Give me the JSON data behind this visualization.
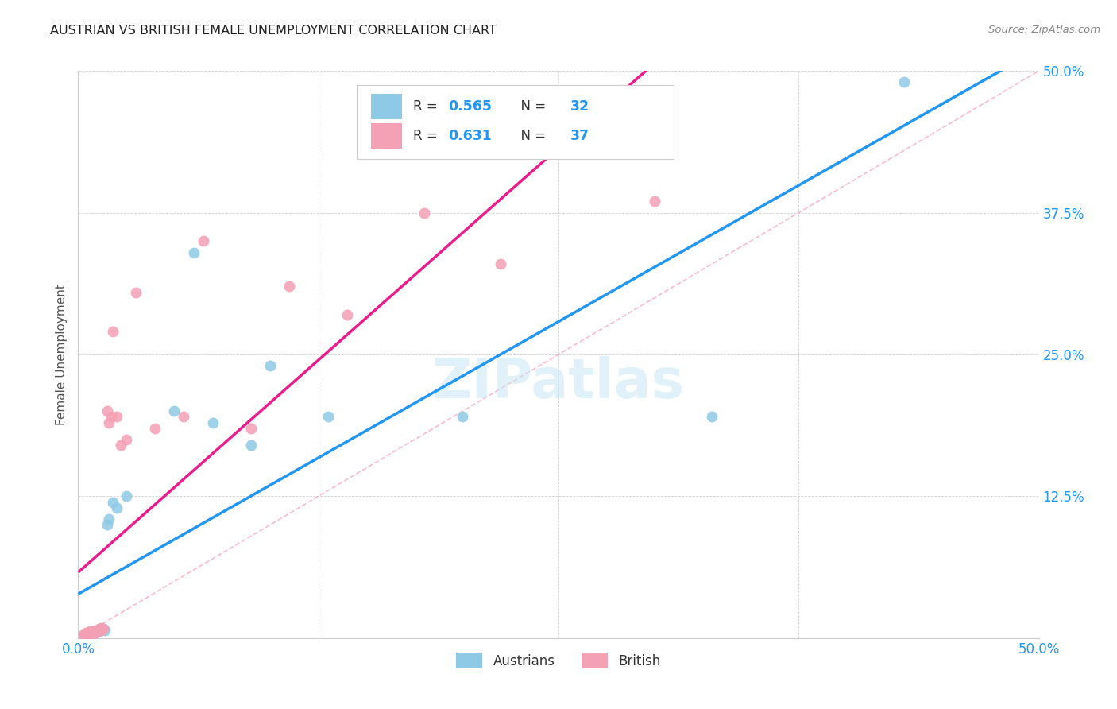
{
  "title": "AUSTRIAN VS BRITISH FEMALE UNEMPLOYMENT CORRELATION CHART",
  "source": "Source: ZipAtlas.com",
  "ylabel": "Female Unemployment",
  "xlim": [
    0.0,
    0.5
  ],
  "ylim": [
    0.0,
    0.5
  ],
  "xticks": [
    0.0,
    0.125,
    0.25,
    0.375,
    0.5
  ],
  "yticks": [
    0.0,
    0.125,
    0.25,
    0.375,
    0.5
  ],
  "xtick_labels": [
    "0.0%",
    "",
    "",
    "",
    "50.0%"
  ],
  "ytick_labels": [
    "",
    "12.5%",
    "25.0%",
    "37.5%",
    "50.0%"
  ],
  "austrians_color": "#8ecae6",
  "british_color": "#f4a0b5",
  "line_aus_color": "#2196f3",
  "line_brit_color": "#e91e8c",
  "R_austrians": "0.565",
  "N_austrians": "32",
  "R_british": "0.631",
  "N_british": "37",
  "watermark": "ZIPatlas",
  "legend_color": "#2196f3",
  "austrians_x": [
    0.003,
    0.004,
    0.005,
    0.005,
    0.006,
    0.006,
    0.007,
    0.007,
    0.008,
    0.008,
    0.009,
    0.009,
    0.01,
    0.01,
    0.011,
    0.012,
    0.013,
    0.014,
    0.015,
    0.016,
    0.018,
    0.02,
    0.025,
    0.05,
    0.06,
    0.07,
    0.09,
    0.1,
    0.13,
    0.2,
    0.33,
    0.43
  ],
  "austrians_y": [
    0.003,
    0.004,
    0.003,
    0.005,
    0.005,
    0.004,
    0.005,
    0.006,
    0.005,
    0.004,
    0.006,
    0.005,
    0.007,
    0.006,
    0.006,
    0.008,
    0.008,
    0.007,
    0.1,
    0.105,
    0.12,
    0.115,
    0.125,
    0.2,
    0.34,
    0.19,
    0.17,
    0.24,
    0.195,
    0.195,
    0.195,
    0.49
  ],
  "british_x": [
    0.003,
    0.003,
    0.004,
    0.004,
    0.005,
    0.005,
    0.006,
    0.006,
    0.007,
    0.007,
    0.008,
    0.008,
    0.009,
    0.009,
    0.01,
    0.01,
    0.011,
    0.012,
    0.012,
    0.013,
    0.015,
    0.016,
    0.017,
    0.018,
    0.02,
    0.022,
    0.025,
    0.03,
    0.04,
    0.055,
    0.065,
    0.09,
    0.11,
    0.14,
    0.18,
    0.22,
    0.3
  ],
  "british_y": [
    0.003,
    0.004,
    0.003,
    0.005,
    0.004,
    0.005,
    0.004,
    0.006,
    0.005,
    0.006,
    0.004,
    0.006,
    0.005,
    0.007,
    0.006,
    0.007,
    0.008,
    0.007,
    0.009,
    0.008,
    0.2,
    0.19,
    0.195,
    0.27,
    0.195,
    0.17,
    0.175,
    0.305,
    0.185,
    0.195,
    0.35,
    0.185,
    0.31,
    0.285,
    0.375,
    0.33,
    0.385
  ]
}
